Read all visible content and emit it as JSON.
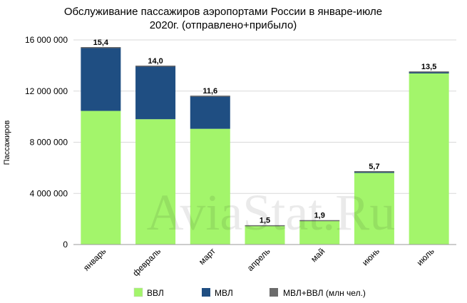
{
  "chart_data": {
    "type": "bar",
    "stacked": true,
    "title_lines": [
      "Обслуживание пассажиров аэропортами России в январе-июле",
      "2020г. (отправлено+прибыло)"
    ],
    "ylabel": "Пассажиров",
    "ylim": [
      0,
      16000000
    ],
    "yticks": [
      0,
      4000000,
      8000000,
      12000000,
      16000000
    ],
    "ytick_labels": [
      "0",
      "4 000 000",
      "8 000 000",
      "12 000 000",
      "16 000 000"
    ],
    "categories": [
      "январь",
      "февраль",
      "март",
      "апрель",
      "май",
      "июнь",
      "июль"
    ],
    "series": [
      {
        "name": "ВВЛ",
        "color": "#a3f56b",
        "values": [
          10450000,
          9800000,
          9050000,
          1450000,
          1850000,
          5600000,
          13380000
        ]
      },
      {
        "name": "МВЛ",
        "color": "#1f4e82",
        "values": [
          4950000,
          4150000,
          2550000,
          20000,
          20000,
          100000,
          120000
        ]
      }
    ],
    "totals_series": {
      "name": "МВЛ+ВВЛ (млн чел.)",
      "color": "#6b6b6b"
    },
    "data_labels": [
      "15,4",
      "14,0",
      "11,6",
      "1,5",
      "1,9",
      "5,7",
      "13,5"
    ],
    "grid": true,
    "legend_position": "bottom",
    "watermark": "AviaStat.Ru"
  }
}
